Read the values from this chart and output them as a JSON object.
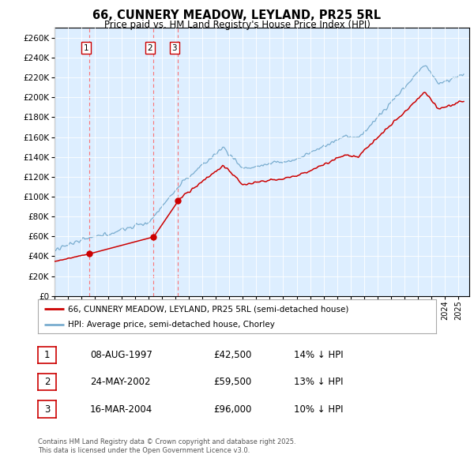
{
  "title": "66, CUNNERY MEADOW, LEYLAND, PR25 5RL",
  "subtitle": "Price paid vs. HM Land Registry's House Price Index (HPI)",
  "ylim": [
    0,
    270000
  ],
  "yticks": [
    0,
    20000,
    40000,
    60000,
    80000,
    100000,
    120000,
    140000,
    160000,
    180000,
    200000,
    220000,
    240000,
    260000
  ],
  "legend_entry1": "66, CUNNERY MEADOW, LEYLAND, PR25 5RL (semi-detached house)",
  "legend_entry2": "HPI: Average price, semi-detached house, Chorley",
  "sale1_date": "08-AUG-1997",
  "sale1_price": 42500,
  "sale1_pct": "14%",
  "sale2_date": "24-MAY-2002",
  "sale2_price": 59500,
  "sale2_pct": "13%",
  "sale3_date": "16-MAR-2004",
  "sale3_price": 96000,
  "sale3_pct": "10%",
  "red_line_color": "#cc0000",
  "blue_line_color": "#7aadcf",
  "background_color": "#ffffff",
  "chart_bg_color": "#ddeeff",
  "grid_color": "#ffffff",
  "footnote": "Contains HM Land Registry data © Crown copyright and database right 2025.\nThis data is licensed under the Open Government Licence v3.0.",
  "sale_marker_color": "#cc0000",
  "vline_color": "#ff6666",
  "xlim_start": 1995.0,
  "xlim_end": 2025.83
}
